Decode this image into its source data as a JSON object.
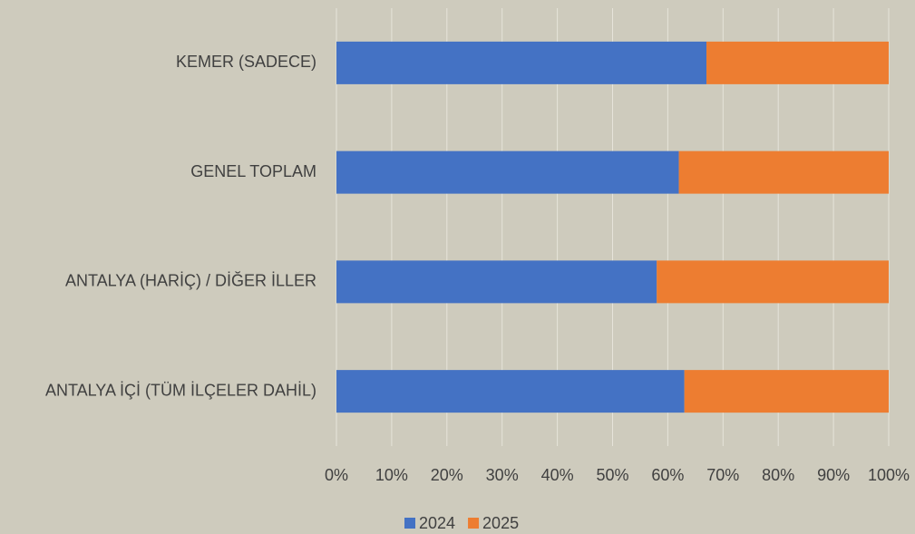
{
  "chart_data": {
    "type": "stacked_barh",
    "categories": [
      "KEMER (SADECE)",
      "GENEL TOPLAM",
      "ANTALYA (HARİÇ) / DİĞER İLLER",
      "ANTALYA İÇİ (TÜM İLÇELER DAHİL)"
    ],
    "series": [
      {
        "name": "2024",
        "color": "#4472c4",
        "values": [
          67,
          62,
          58,
          63
        ]
      },
      {
        "name": "2025",
        "color": "#ed7d31",
        "values": [
          33,
          38,
          42,
          37
        ]
      }
    ],
    "xlim": [
      0,
      100
    ],
    "xticks": [
      {
        "value": 0,
        "label": "0%"
      },
      {
        "value": 10,
        "label": "10%"
      },
      {
        "value": 20,
        "label": "20%"
      },
      {
        "value": 30,
        "label": "30%"
      },
      {
        "value": 40,
        "label": "40%"
      },
      {
        "value": 50,
        "label": "50%"
      },
      {
        "value": 60,
        "label": "60%"
      },
      {
        "value": 70,
        "label": "70%"
      },
      {
        "value": 80,
        "label": "80%"
      },
      {
        "value": 90,
        "label": "90%"
      },
      {
        "value": 100,
        "label": "100%"
      }
    ],
    "grid": true,
    "legend": "bottom"
  }
}
